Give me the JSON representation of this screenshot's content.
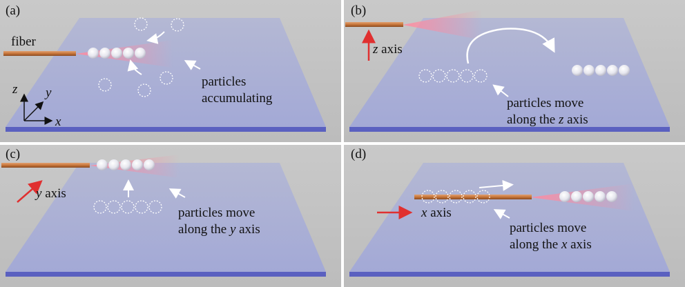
{
  "panels": [
    {
      "label": "(a)",
      "fiber_label": "fiber",
      "annotation": [
        "particles",
        "accumulating"
      ],
      "axes": {
        "z": "z",
        "y": "y",
        "x": "x"
      }
    },
    {
      "label": "(b)",
      "axis_label": "z axis",
      "annotation": [
        "particles move",
        "along the z axis"
      ]
    },
    {
      "label": "(c)",
      "axis_label": "y axis",
      "annotation": [
        "particles move",
        "along the y axis"
      ]
    },
    {
      "label": "(d)",
      "axis_label": "x axis",
      "annotation": [
        "particles move",
        "along the x axis"
      ]
    }
  ]
}
